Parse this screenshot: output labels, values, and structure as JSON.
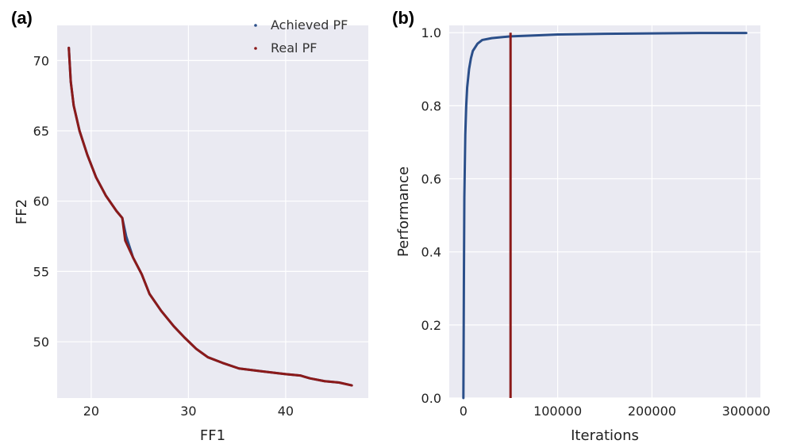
{
  "chart_data": [
    {
      "panel_label": "(a)",
      "type": "line",
      "xlabel": "FF1",
      "ylabel": "FF2",
      "xlim": [
        16.5,
        48.5
      ],
      "ylim": [
        46,
        72.5
      ],
      "xticks": [
        20,
        30,
        40
      ],
      "yticks": [
        50,
        55,
        60,
        65,
        70
      ],
      "grid": true,
      "legend": {
        "placement": "top-right",
        "entries": [
          "Achieved PF",
          "Real PF"
        ]
      },
      "series": [
        {
          "name": "Achieved PF",
          "color": "#2b4f8a",
          "x": [
            17.7,
            17.9,
            18.2,
            18.8,
            19.6,
            20.5,
            21.5,
            22.6,
            23.2,
            23.6,
            24.3,
            25.2,
            26.0,
            27.2,
            28.5,
            29.6,
            30.8,
            32.0,
            33.5,
            35.2,
            37.5,
            40.0,
            41.5,
            42.5,
            44.0,
            45.5,
            46.8
          ],
          "y": [
            70.9,
            68.5,
            66.8,
            65.0,
            63.3,
            61.7,
            60.4,
            59.3,
            58.8,
            57.5,
            56.0,
            54.8,
            53.4,
            52.2,
            51.1,
            50.3,
            49.5,
            48.9,
            48.5,
            48.1,
            47.9,
            47.7,
            47.6,
            47.4,
            47.2,
            47.1,
            46.9
          ]
        },
        {
          "name": "Real PF",
          "color": "#8b1a1a",
          "x": [
            17.7,
            17.9,
            18.2,
            18.8,
            19.6,
            20.5,
            21.5,
            22.6,
            23.2,
            23.5,
            24.3,
            25.2,
            26.0,
            27.2,
            28.5,
            29.6,
            30.8,
            32.0,
            33.5,
            35.2,
            37.5,
            40.0,
            41.5,
            42.5,
            44.0,
            45.5,
            46.8
          ],
          "y": [
            70.9,
            68.5,
            66.8,
            65.0,
            63.3,
            61.7,
            60.4,
            59.3,
            58.8,
            57.2,
            56.0,
            54.8,
            53.4,
            52.2,
            51.1,
            50.3,
            49.5,
            48.9,
            48.5,
            48.1,
            47.9,
            47.7,
            47.6,
            47.4,
            47.2,
            47.1,
            46.9
          ]
        }
      ]
    },
    {
      "panel_label": "(b)",
      "type": "line",
      "xlabel": "Iterations",
      "ylabel": "Performance",
      "xlim": [
        -15000,
        315000
      ],
      "ylim": [
        0,
        1.02
      ],
      "xticks": [
        0,
        100000,
        200000,
        300000
      ],
      "yticks": [
        "0.0",
        "0.2",
        "0.4",
        "0.6",
        "0.8",
        "1.0"
      ],
      "grid": true,
      "series": [
        {
          "color": "#2b4f8a",
          "x": [
            0,
            500,
            1000,
            2000,
            3000,
            4000,
            6000,
            8000,
            10000,
            15000,
            20000,
            30000,
            50000,
            80000,
            100000,
            150000,
            200000,
            250000,
            300000
          ],
          "y": [
            0.0,
            0.3,
            0.55,
            0.72,
            0.8,
            0.85,
            0.9,
            0.93,
            0.95,
            0.97,
            0.98,
            0.985,
            0.99,
            0.993,
            0.995,
            0.997,
            0.998,
            0.999,
            0.999
          ]
        }
      ],
      "vertical_line": {
        "x": 50000,
        "color": "#8b1a1a"
      }
    }
  ]
}
